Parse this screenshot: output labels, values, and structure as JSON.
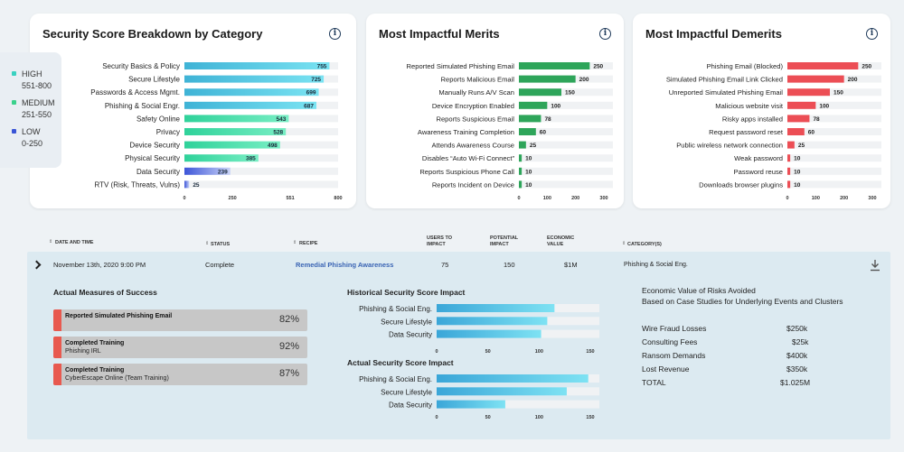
{
  "cards": {
    "score": {
      "title": "Security Score Breakdown by Category"
    },
    "merits": {
      "title": "Most Impactful Merits"
    },
    "demerits": {
      "title": "Most Impactful Demerits"
    }
  },
  "legend": [
    {
      "label": "HIGH",
      "range": "551-800",
      "color": "#39d1c0"
    },
    {
      "label": "MEDIUM",
      "range": "251-550",
      "color": "#3ad18c"
    },
    {
      "label": "LOW",
      "range": "0-250",
      "color": "#3a55d6"
    }
  ],
  "chart_data": [
    {
      "type": "bar",
      "orientation": "horizontal",
      "title": "Security Score Breakdown by Category",
      "categories": [
        "Security Basics & Policy",
        "Secure Lifestyle",
        "Passwords & Access Mgmt.",
        "Phishing & Social Engr.",
        "Safety Online",
        "Privacy",
        "Device Security",
        "Physical Security",
        "Data Security",
        "RTV (Risk, Threats, Vulns)"
      ],
      "values": [
        755,
        725,
        699,
        687,
        543,
        528,
        498,
        385,
        239,
        25
      ],
      "xlim": [
        0,
        800
      ],
      "xticks": [
        "0",
        "250",
        "551",
        "800"
      ]
    },
    {
      "type": "bar",
      "orientation": "horizontal",
      "title": "Most Impactful Merits",
      "categories": [
        "Reported Simulated Phishing Email",
        "Reports Malicious Email",
        "Manually Runs A/V Scan",
        "Device Encryption Enabled",
        "Reports Suspicious Email",
        "Awareness Training Completion",
        "Attends Awareness Course",
        "Disables “Auto Wi-Fi Connect”",
        "Reports Suspicious Phone Call",
        "Reports Incident on Device"
      ],
      "values": [
        250,
        200,
        150,
        100,
        78,
        60,
        25,
        10,
        10,
        10
      ],
      "xlim": [
        0,
        300
      ],
      "xticks": [
        "0",
        "100",
        "200",
        "300"
      ],
      "color": "#2ea55a"
    },
    {
      "type": "bar",
      "orientation": "horizontal",
      "title": "Most Impactful Demerits",
      "categories": [
        "Phishing Email (Blocked)",
        "Simulated Phishing Email Link Clicked",
        "Unreported Simulated Phishing Email",
        "Malicious website visit",
        "Risky apps installed",
        "Request password reset",
        "Public wireless network connection",
        "Weak password",
        "Password reuse",
        "Downloads browser plugins"
      ],
      "values": [
        250,
        200,
        150,
        100,
        78,
        60,
        25,
        10,
        10,
        10
      ],
      "xlim": [
        0,
        300
      ],
      "xticks": [
        "0",
        "100",
        "200",
        "300"
      ],
      "color": "#ec4e55"
    },
    {
      "type": "bar",
      "orientation": "horizontal",
      "title": "Historical Security Score Impact",
      "categories": [
        "Phishing & Social Eng.",
        "Secure Lifestyle",
        "Data Security"
      ],
      "values": [
        115,
        108,
        102
      ],
      "xlim": [
        0,
        150
      ],
      "xticks": [
        "0",
        "50",
        "100",
        "150"
      ]
    },
    {
      "type": "bar",
      "orientation": "horizontal",
      "title": "Actual Security Score Impact",
      "categories": [
        "Phishing & Social Eng.",
        "Secure Lifestyle",
        "Data Security"
      ],
      "values": [
        148,
        127,
        67
      ],
      "xlim": [
        0,
        150
      ],
      "xticks": [
        "0",
        "50",
        "100",
        "150"
      ]
    }
  ],
  "table": {
    "headers": {
      "date": "DATE AND TIME",
      "status": "STATUS",
      "recipe": "RECIPE",
      "users": [
        "USERS TO",
        "IMPACT"
      ],
      "potential": [
        "POTENTIAL",
        "IMPACT"
      ],
      "economic": [
        "ECONOMIC",
        "VALUE"
      ],
      "category": "CATEGORY(S)"
    },
    "row": {
      "date": "November 13th, 2020 9:00 PM",
      "status": "Complete",
      "recipe": "Remedial Phishing Awareness",
      "users": "75",
      "potential": "150",
      "economic": "$1M",
      "category": "Phishing & Social Eng."
    }
  },
  "detail": {
    "measures_title": "Actual Measures of Success",
    "measures": [
      {
        "title": "Reported Simulated Phishing Email",
        "sub": "",
        "pct": "82%"
      },
      {
        "title": "Completed Training",
        "sub": "Phishing IRL",
        "pct": "92%"
      },
      {
        "title": "Completed Training",
        "sub": "CyberEscape Online (Team Training)",
        "pct": "87%"
      }
    ],
    "historical_title": "Historical Security Score Impact",
    "actual_title": "Actual Security Score Impact",
    "econ_title_1": "Economic Value of Risks Avoided",
    "econ_title_2": "Based on Case Studies for Underlying Events and Clusters",
    "econ_rows": [
      {
        "label": "Wire Fraud Losses",
        "value": "$250k"
      },
      {
        "label": "Consulting Fees",
        "value": "$25k"
      },
      {
        "label": "Ransom Demands",
        "value": "$400k"
      },
      {
        "label": "Lost Revenue",
        "value": "$350k"
      },
      {
        "label": "TOTAL",
        "value": "$1.025M"
      }
    ]
  }
}
